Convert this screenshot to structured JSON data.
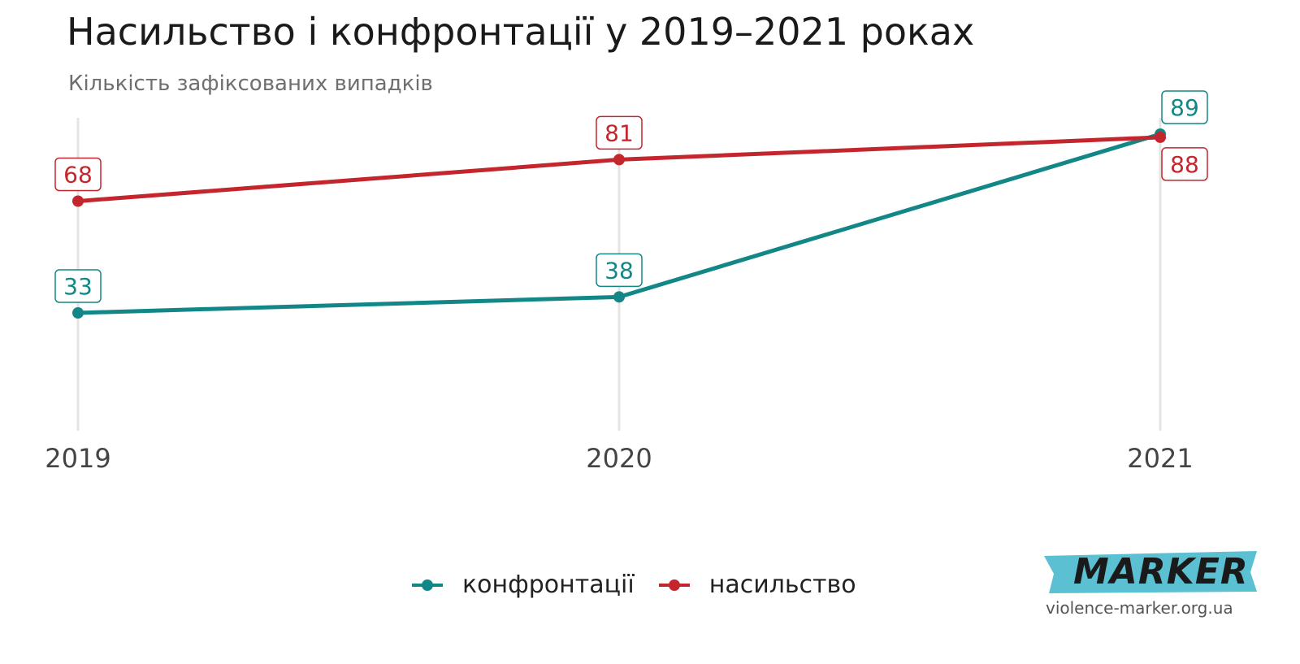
{
  "title": "Насильство і конфронтації у 2019–2021 роках",
  "subtitle": "Кількість зафіксованих випадків",
  "chart_data": {
    "type": "line",
    "title": "Насильство і конфронтації у 2019–2021 роках",
    "subtitle": "Кількість зафіксованих випадків",
    "categories": [
      "2019",
      "2020",
      "2021"
    ],
    "series": [
      {
        "name": "конфронтації",
        "values": [
          33,
          38,
          89
        ],
        "color": "#138787"
      },
      {
        "name": "насильство",
        "values": [
          68,
          81,
          88
        ],
        "color": "#c4262e"
      }
    ],
    "ylim": [
      0,
      95
    ],
    "grid": "vertical",
    "legend": "bottom"
  },
  "legend": {
    "items": [
      "конфронтації",
      "насильство"
    ]
  },
  "logo": {
    "brand": "MARKER",
    "url": "violence-marker.org.ua",
    "band_color": "#5bc0d2"
  }
}
